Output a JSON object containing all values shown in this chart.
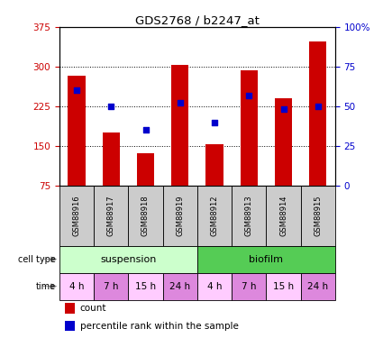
{
  "title": "GDS2768 / b2247_at",
  "samples": [
    "GSM88916",
    "GSM88917",
    "GSM88918",
    "GSM88919",
    "GSM88912",
    "GSM88913",
    "GSM88914",
    "GSM88915"
  ],
  "counts": [
    283,
    175,
    137,
    304,
    153,
    293,
    240,
    347
  ],
  "percentile_ranks": [
    60,
    50,
    35,
    52,
    40,
    57,
    48,
    50
  ],
  "ymin": 75,
  "ymax": 375,
  "yticks": [
    75,
    150,
    225,
    300,
    375
  ],
  "y2ticks": [
    0,
    25,
    50,
    75,
    100
  ],
  "y2labels": [
    "0",
    "25",
    "50",
    "75",
    "100%"
  ],
  "bar_color": "#cc0000",
  "dot_color": "#0000cc",
  "cell_type_colors": [
    "#ccffcc",
    "#55cc55"
  ],
  "time_colors": [
    "#ffccff",
    "#dd88dd",
    "#ffccff",
    "#dd88dd",
    "#ffccff",
    "#dd88dd",
    "#ffccff",
    "#dd88dd"
  ],
  "time_labels": [
    "4 h",
    "7 h",
    "15 h",
    "24 h",
    "4 h",
    "7 h",
    "15 h",
    "24 h"
  ],
  "sample_bg_color": "#cccccc",
  "tick_color_left": "#cc0000",
  "tick_color_right": "#0000cc"
}
